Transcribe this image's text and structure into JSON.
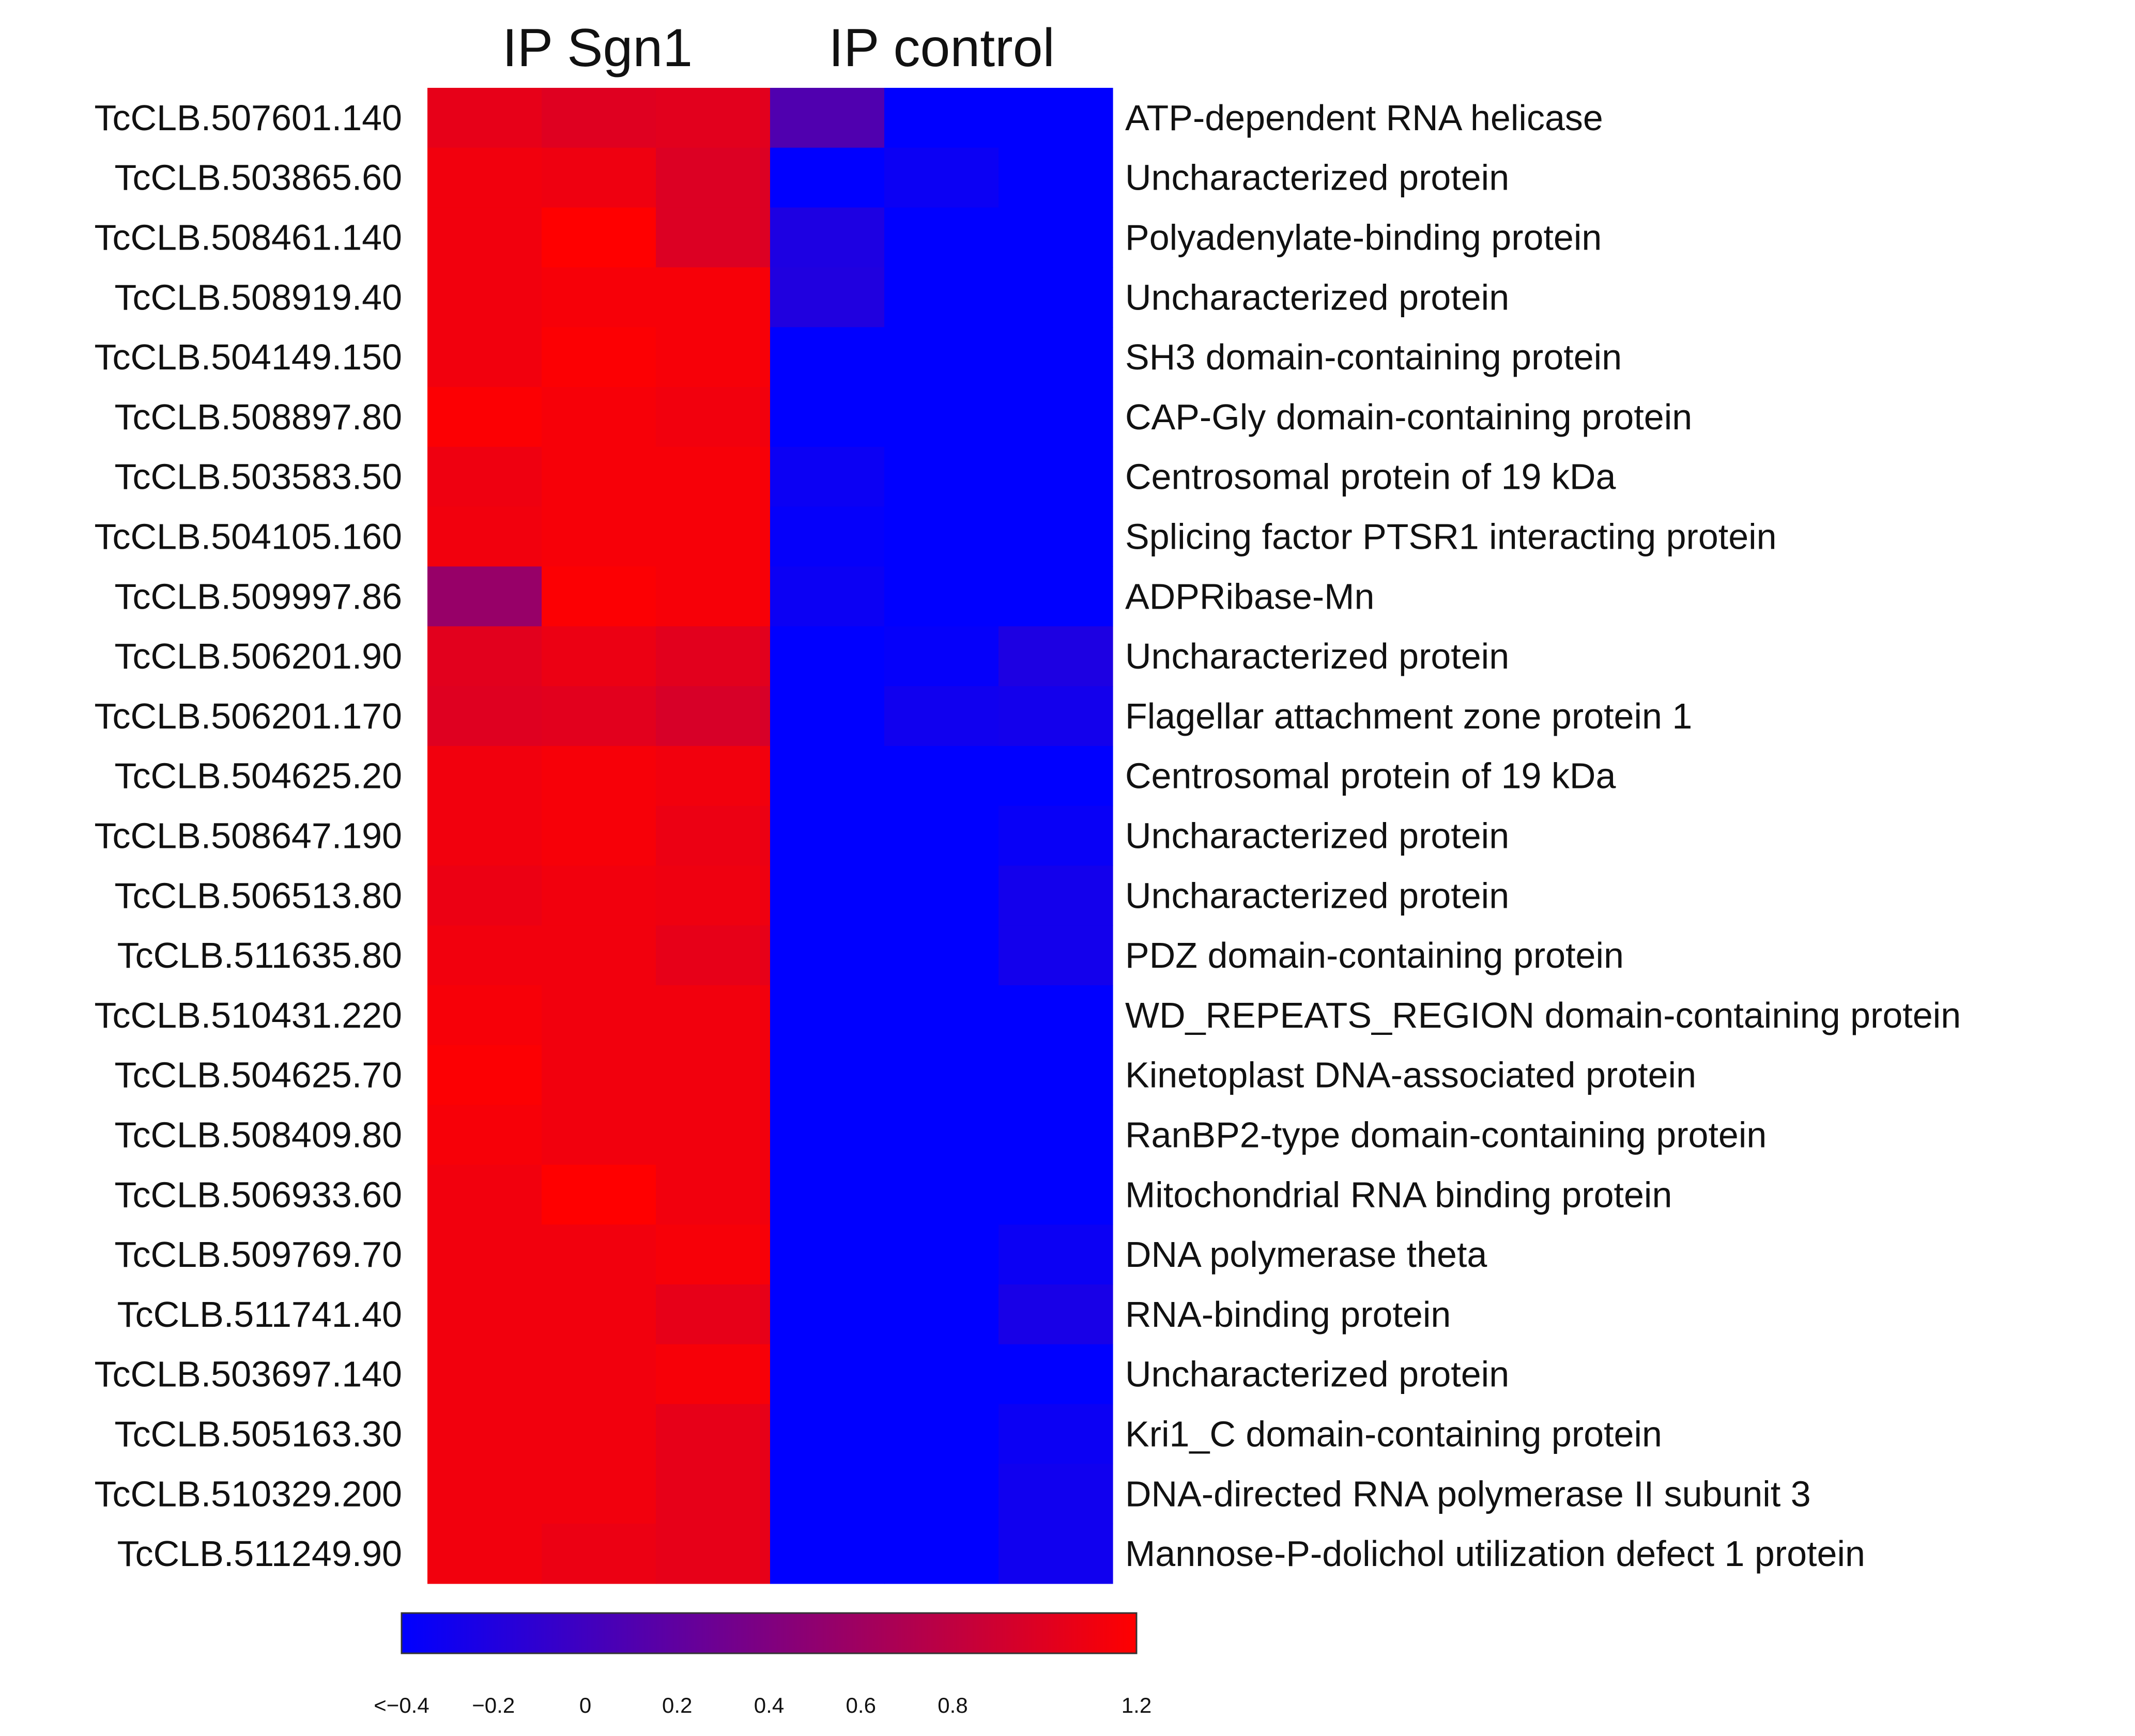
{
  "chart_data": {
    "type": "heatmap",
    "columns": [
      {
        "label": "IP Sgn1",
        "span": 3
      },
      {
        "label": "IP control",
        "span": 3
      }
    ],
    "rows": [
      {
        "id": "TcCLB.507601.140",
        "annotation": "ATP-dependent RNA helicase",
        "values": [
          1.05,
          1.0,
          1.02,
          0.1,
          -0.4,
          -0.4
        ]
      },
      {
        "id": "TcCLB.503865.60",
        "annotation": "Uncharacterized protein",
        "values": [
          1.12,
          1.1,
          0.98,
          -0.4,
          -0.33,
          -0.4
        ]
      },
      {
        "id": "TcCLB.508461.140",
        "annotation": "Polyadenylate-binding protein",
        "values": [
          1.12,
          1.2,
          0.98,
          -0.22,
          -0.4,
          -0.4
        ]
      },
      {
        "id": "TcCLB.508919.40",
        "annotation": "Uncharacterized protein",
        "values": [
          1.12,
          1.15,
          1.15,
          -0.2,
          -0.4,
          -0.4
        ]
      },
      {
        "id": "TcCLB.504149.150",
        "annotation": "SH3 domain-containing protein",
        "values": [
          1.12,
          1.18,
          1.15,
          -0.4,
          -0.4,
          -0.4
        ]
      },
      {
        "id": "TcCLB.508897.80",
        "annotation": "CAP-Gly domain-containing protein",
        "values": [
          1.18,
          1.15,
          1.12,
          -0.4,
          -0.4,
          -0.4
        ]
      },
      {
        "id": "TcCLB.503583.50",
        "annotation": "Centrosomal protein of 19 kDa",
        "values": [
          1.1,
          1.15,
          1.15,
          -0.33,
          -0.4,
          -0.4
        ]
      },
      {
        "id": "TcCLB.504105.160",
        "annotation": "Splicing factor PTSR1 interacting protein",
        "values": [
          1.12,
          1.15,
          1.15,
          -0.37,
          -0.4,
          -0.4
        ]
      },
      {
        "id": "TcCLB.509997.86",
        "annotation": "ADPRibase-Mn",
        "values": [
          0.55,
          1.18,
          1.15,
          -0.33,
          -0.4,
          -0.4
        ]
      },
      {
        "id": "TcCLB.506201.90",
        "annotation": "Uncharacterized protein",
        "values": [
          1.02,
          1.08,
          1.02,
          -0.4,
          -0.37,
          -0.22
        ]
      },
      {
        "id": "TcCLB.506201.170",
        "annotation": "Flagellar attachment zone protein 1",
        "values": [
          1.0,
          1.02,
          0.95,
          -0.4,
          -0.3,
          -0.28
        ]
      },
      {
        "id": "TcCLB.504625.20",
        "annotation": "Centrosomal protein of 19 kDa",
        "values": [
          1.12,
          1.15,
          1.12,
          -0.4,
          -0.4,
          -0.4
        ]
      },
      {
        "id": "TcCLB.508647.190",
        "annotation": "Uncharacterized protein",
        "values": [
          1.12,
          1.15,
          1.08,
          -0.4,
          -0.4,
          -0.35
        ]
      },
      {
        "id": "TcCLB.506513.80",
        "annotation": "Uncharacterized protein",
        "values": [
          1.08,
          1.12,
          1.1,
          -0.4,
          -0.4,
          -0.28
        ]
      },
      {
        "id": "TcCLB.511635.80",
        "annotation": "PDZ domain-containing protein",
        "values": [
          1.12,
          1.12,
          1.05,
          -0.4,
          -0.4,
          -0.28
        ]
      },
      {
        "id": "TcCLB.510431.220",
        "annotation": "WD_REPEATS_REGION domain-containing protein",
        "values": [
          1.15,
          1.12,
          1.12,
          -0.4,
          -0.4,
          -0.4
        ]
      },
      {
        "id": "TcCLB.504625.70",
        "annotation": "Kinetoplast DNA-associated protein",
        "values": [
          1.18,
          1.12,
          1.12,
          -0.4,
          -0.4,
          -0.4
        ]
      },
      {
        "id": "TcCLB.508409.80",
        "annotation": "RanBP2-type domain-containing protein",
        "values": [
          1.15,
          1.12,
          1.12,
          -0.4,
          -0.4,
          -0.4
        ]
      },
      {
        "id": "TcCLB.506933.60",
        "annotation": "Mitochondrial RNA binding protein",
        "values": [
          1.12,
          1.2,
          1.12,
          -0.4,
          -0.4,
          -0.4
        ]
      },
      {
        "id": "TcCLB.509769.70",
        "annotation": "DNA polymerase theta",
        "values": [
          1.12,
          1.12,
          1.15,
          -0.4,
          -0.4,
          -0.33
        ]
      },
      {
        "id": "TcCLB.511741.40",
        "annotation": "RNA-binding protein",
        "values": [
          1.12,
          1.12,
          1.05,
          -0.4,
          -0.4,
          -0.25
        ]
      },
      {
        "id": "TcCLB.503697.140",
        "annotation": "Uncharacterized protein",
        "values": [
          1.12,
          1.12,
          1.15,
          -0.4,
          -0.4,
          -0.4
        ]
      },
      {
        "id": "TcCLB.505163.30",
        "annotation": "Kri1_C domain-containing protein",
        "values": [
          1.12,
          1.12,
          1.05,
          -0.4,
          -0.4,
          -0.33
        ]
      },
      {
        "id": "TcCLB.510329.200",
        "annotation": "DNA-directed RNA polymerase II subunit 3",
        "values": [
          1.12,
          1.12,
          1.05,
          -0.4,
          -0.4,
          -0.3
        ]
      },
      {
        "id": "TcCLB.511249.90",
        "annotation": "Mannose-P-dolichol utilization defect 1 protein",
        "values": [
          1.12,
          1.08,
          1.05,
          -0.4,
          -0.4,
          -0.3
        ]
      }
    ],
    "color_scale": {
      "min": -0.4,
      "max": 1.2,
      "low_color": "#0000ff",
      "high_color": "#ff0000",
      "tick_labels": [
        "<-0.4",
        "-0.2",
        "0",
        "0.2",
        "0.4",
        "0.6",
        "0.8",
        "1.2"
      ],
      "tick_values": [
        -0.4,
        -0.2,
        0,
        0.2,
        0.4,
        0.6,
        0.8,
        1.2
      ]
    }
  }
}
